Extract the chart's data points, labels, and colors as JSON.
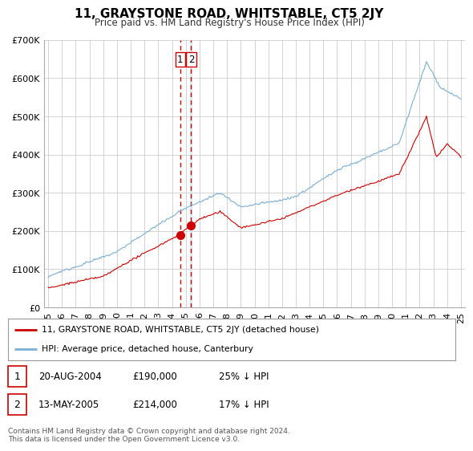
{
  "title": "11, GRAYSTONE ROAD, WHITSTABLE, CT5 2JY",
  "subtitle": "Price paid vs. HM Land Registry's House Price Index (HPI)",
  "legend_line1": "11, GRAYSTONE ROAD, WHITSTABLE, CT5 2JY (detached house)",
  "legend_line2": "HPI: Average price, detached house, Canterbury",
  "transaction1_date": "20-AUG-2004",
  "transaction1_price": "£190,000",
  "transaction1_hpi": "25% ↓ HPI",
  "transaction1_x": 2004.63,
  "transaction1_y": 190000,
  "transaction2_date": "13-MAY-2005",
  "transaction2_price": "£214,000",
  "transaction2_hpi": "17% ↓ HPI",
  "transaction2_x": 2005.37,
  "transaction2_y": 214000,
  "footer": "Contains HM Land Registry data © Crown copyright and database right 2024.\nThis data is licensed under the Open Government Licence v3.0.",
  "line_color_red": "#cc0000",
  "line_color_blue": "#7bafd4",
  "vline_color": "#cc0000",
  "vline_color2": "#aac4e0",
  "ylim": [
    0,
    700000
  ],
  "xlim": [
    1994.7,
    2025.3
  ],
  "yticks": [
    0,
    100000,
    200000,
    300000,
    400000,
    500000,
    600000,
    700000
  ],
  "ytick_labels": [
    "£0",
    "£100K",
    "£200K",
    "£300K",
    "£400K",
    "£500K",
    "£600K",
    "£700K"
  ],
  "xticks": [
    1995,
    1996,
    1997,
    1998,
    1999,
    2000,
    2001,
    2002,
    2003,
    2004,
    2005,
    2006,
    2007,
    2008,
    2009,
    2010,
    2011,
    2012,
    2013,
    2014,
    2015,
    2016,
    2017,
    2018,
    2019,
    2020,
    2021,
    2022,
    2023,
    2024,
    2025
  ],
  "background_color": "#ffffff",
  "grid_color": "#cccccc"
}
